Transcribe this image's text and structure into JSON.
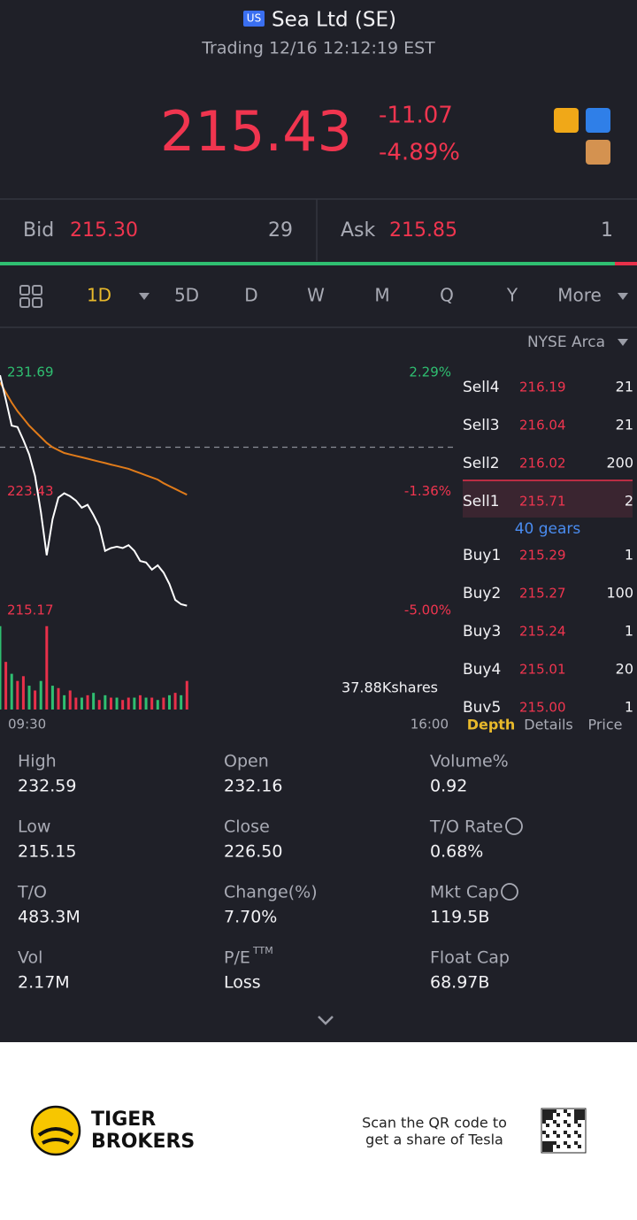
{
  "header": {
    "market_badge": "US",
    "title": "Sea Ltd (SE)",
    "status": "Trading 12/16 12:12:19 EST"
  },
  "quote": {
    "price": "215.43",
    "change": "-11.07",
    "change_pct": "-4.89%"
  },
  "bidask": {
    "bid_label": "Bid",
    "bid": "215.30",
    "bid_size": "29",
    "ask_label": "Ask",
    "ask": "215.85",
    "ask_size": "1"
  },
  "tabs": [
    "1D",
    "5D",
    "D",
    "W",
    "M",
    "Q",
    "Y",
    "More"
  ],
  "exchange": "NYSE Arca",
  "chart_data": [
    {
      "type": "line",
      "x": [
        0,
        5,
        10,
        15,
        20,
        25,
        30,
        35,
        40,
        45,
        50,
        55,
        60,
        65,
        70,
        75,
        80,
        85,
        90,
        95,
        100,
        105,
        110,
        115,
        120,
        125,
        130,
        135,
        140,
        145,
        150,
        155,
        160
      ],
      "series": [
        {
          "color": "#ffffff",
          "values": [
            231.5,
            229.8,
            228.0,
            227.9,
            227.0,
            226.0,
            224.5,
            222.0,
            219.0,
            221.5,
            223.0,
            223.3,
            223.1,
            222.8,
            222.3,
            222.5,
            221.8,
            221.0,
            219.3,
            219.5,
            219.6,
            219.5,
            219.7,
            219.3,
            218.6,
            218.5,
            218.0,
            218.3,
            217.8,
            217.0,
            215.9,
            215.6,
            215.5
          ]
        },
        {
          "color": "#e07b1a",
          "values": [
            231.0,
            230.3,
            229.6,
            229.0,
            228.5,
            228.0,
            227.6,
            227.2,
            226.8,
            226.5,
            226.3,
            226.1,
            226.0,
            225.9,
            225.8,
            225.7,
            225.6,
            225.5,
            225.4,
            225.3,
            225.2,
            225.1,
            225.0,
            224.85,
            224.7,
            224.55,
            224.4,
            224.25,
            224.0,
            223.8,
            223.6,
            223.4,
            223.2
          ]
        }
      ],
      "reference_line": 226.5,
      "xlim": [
        0,
        390
      ],
      "xticks": [
        {
          "value": 0,
          "label": "09:30"
        },
        {
          "value": 390,
          "label": "16:00"
        }
      ],
      "ylim": [
        215.17,
        231.69
      ],
      "yticks": [
        231.69,
        223.43,
        215.17
      ],
      "y2lim": [
        -5.0,
        2.29
      ],
      "y2ticks": [
        {
          "value": 2.29,
          "label": "2.29%"
        },
        {
          "value": -1.36,
          "label": "-1.36%"
        },
        {
          "value": -5.0,
          "label": "-5.00%"
        }
      ]
    },
    {
      "type": "bar",
      "x": [
        0,
        5,
        10,
        15,
        20,
        25,
        30,
        35,
        40,
        45,
        50,
        55,
        60,
        65,
        70,
        75,
        80,
        85,
        90,
        95,
        100,
        105,
        110,
        115,
        120,
        125,
        130,
        135,
        140,
        145,
        150,
        155,
        160
      ],
      "values": [
        35,
        20,
        15,
        12,
        14,
        10,
        8,
        12,
        35,
        10,
        9,
        6,
        8,
        5,
        5,
        6,
        7,
        4,
        6,
        5,
        5,
        4,
        5,
        5,
        6,
        5,
        5,
        4,
        5,
        6,
        7,
        6,
        12
      ],
      "colors": [
        "#2fbf71",
        "#e8304a",
        "#2fbf71",
        "#e8304a",
        "#e8304a",
        "#2fbf71",
        "#e8304a",
        "#2fbf71",
        "#e8304a",
        "#2fbf71",
        "#e8304a",
        "#2fbf71",
        "#e8304a",
        "#e8304a",
        "#2fbf71",
        "#e8304a",
        "#2fbf71",
        "#e8304a",
        "#2fbf71",
        "#e8304a",
        "#2fbf71",
        "#e8304a",
        "#e8304a",
        "#2fbf71",
        "#e8304a",
        "#2fbf71",
        "#e8304a",
        "#2fbf71",
        "#e8304a",
        "#2fbf71",
        "#e8304a",
        "#2fbf71",
        "#e8304a"
      ],
      "ylim": [
        0,
        37.88
      ],
      "yticks": [
        {
          "value": 37.88,
          "label": "37.88Kshares"
        }
      ]
    }
  ],
  "depth": {
    "sells": [
      {
        "level": "Sell4",
        "price": "216.19",
        "size": "21"
      },
      {
        "level": "Sell3",
        "price": "216.04",
        "size": "21"
      },
      {
        "level": "Sell2",
        "price": "216.02",
        "size": "200"
      },
      {
        "level": "Sell1",
        "price": "215.71",
        "size": "2"
      }
    ],
    "gears": "40 gears",
    "buys": [
      {
        "level": "Buy1",
        "price": "215.29",
        "size": "1"
      },
      {
        "level": "Buy2",
        "price": "215.27",
        "size": "100"
      },
      {
        "level": "Buy3",
        "price": "215.24",
        "size": "1"
      },
      {
        "level": "Buy4",
        "price": "215.01",
        "size": "20"
      },
      {
        "level": "Buy5",
        "price": "215.00",
        "size": "1"
      }
    ],
    "tabs": [
      "Depth",
      "Details",
      "Price"
    ]
  },
  "stats": [
    {
      "label": "High",
      "value": "232.59"
    },
    {
      "label": "Open",
      "value": "232.16"
    },
    {
      "label": "Volume%",
      "value": "0.92"
    },
    {
      "label": "Low",
      "value": "215.15"
    },
    {
      "label": "Close",
      "value": "226.50"
    },
    {
      "label": "T/O Rate",
      "value": "0.68%"
    },
    {
      "label": "T/O",
      "value": "483.3M"
    },
    {
      "label": "Change(%)",
      "value": "7.70%"
    },
    {
      "label": "Mkt Cap",
      "value": "119.5B"
    },
    {
      "label": "Vol",
      "value": "2.17M"
    },
    {
      "label": "P/E",
      "label_sup": "TTM",
      "value": "Loss"
    },
    {
      "label": "Float Cap",
      "value": "68.97B"
    }
  ],
  "footer": {
    "brand_line1": "TIGER",
    "brand_line2": "BROKERS",
    "promo_line1": "Scan the QR code to",
    "promo_line2": "get a share of Tesla"
  }
}
